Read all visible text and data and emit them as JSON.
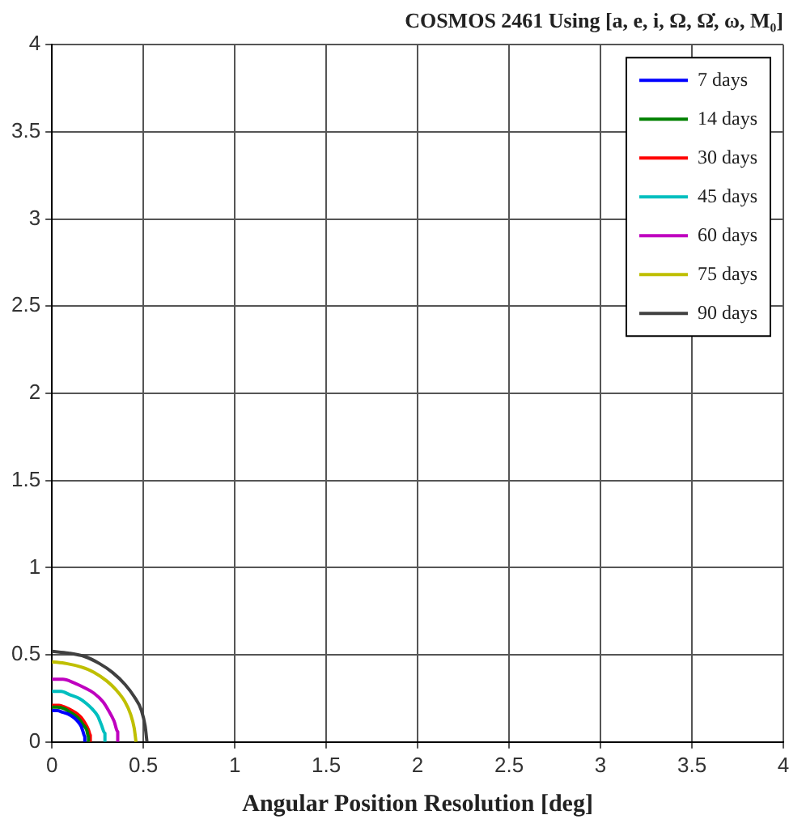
{
  "chart_data": {
    "type": "line",
    "title": "COSMOS 2461 Using [a, e, i, Ω, Ω̇, ω, M₀]",
    "xlabel": "Angular Position Resolution [deg]",
    "xlim": [
      0,
      4
    ],
    "ylim": [
      0,
      4
    ],
    "xticks": [
      0,
      0.5,
      1,
      1.5,
      2,
      2.5,
      3,
      3.5,
      4
    ],
    "yticks": [
      0,
      0.5,
      1,
      1.5,
      2,
      2.5,
      3,
      3.5,
      4
    ],
    "grid": true,
    "legend": "top right",
    "marker": "none",
    "line_style": "solid",
    "series": [
      {
        "name": "7 days",
        "color": "#0000ff",
        "x": [
          0,
          0.03,
          0.06,
          0.09,
          0.12,
          0.14,
          0.16,
          0.17,
          0.18,
          0.18
        ],
        "values": [
          0.18,
          0.18,
          0.17,
          0.16,
          0.14,
          0.12,
          0.09,
          0.06,
          0.03,
          0
        ]
      },
      {
        "name": "14 days",
        "color": "#008000",
        "x": [
          0,
          0.03,
          0.07,
          0.1,
          0.13,
          0.15,
          0.17,
          0.19,
          0.2,
          0.2
        ],
        "values": [
          0.2,
          0.2,
          0.19,
          0.17,
          0.15,
          0.13,
          0.1,
          0.07,
          0.03,
          0
        ]
      },
      {
        "name": "30 days",
        "color": "#ff0000",
        "x": [
          0,
          0.04,
          0.07,
          0.11,
          0.14,
          0.16,
          0.18,
          0.2,
          0.21,
          0.21
        ],
        "values": [
          0.21,
          0.21,
          0.2,
          0.18,
          0.16,
          0.14,
          0.11,
          0.07,
          0.04,
          0
        ]
      },
      {
        "name": "45 days",
        "color": "#00bfbf",
        "x": [
          0,
          0.05,
          0.1,
          0.15,
          0.19,
          0.22,
          0.25,
          0.27,
          0.29,
          0.29
        ],
        "values": [
          0.29,
          0.29,
          0.27,
          0.25,
          0.22,
          0.19,
          0.15,
          0.1,
          0.05,
          0
        ]
      },
      {
        "name": "60 days",
        "color": "#bf00bf",
        "x": [
          0,
          0.06,
          0.12,
          0.18,
          0.23,
          0.28,
          0.31,
          0.34,
          0.36,
          0.36
        ],
        "values": [
          0.36,
          0.36,
          0.34,
          0.31,
          0.28,
          0.23,
          0.18,
          0.12,
          0.06,
          0
        ]
      },
      {
        "name": "75 days",
        "color": "#bfbf00",
        "x": [
          0,
          0.08,
          0.16,
          0.23,
          0.3,
          0.35,
          0.4,
          0.43,
          0.45,
          0.46
        ],
        "values": [
          0.46,
          0.45,
          0.43,
          0.4,
          0.35,
          0.3,
          0.23,
          0.16,
          0.08,
          0
        ]
      },
      {
        "name": "90 days",
        "color": "#404040",
        "x": [
          0,
          0.09,
          0.18,
          0.26,
          0.33,
          0.4,
          0.45,
          0.49,
          0.51,
          0.52
        ],
        "values": [
          0.52,
          0.51,
          0.49,
          0.45,
          0.4,
          0.33,
          0.26,
          0.18,
          0.09,
          0
        ]
      }
    ]
  }
}
